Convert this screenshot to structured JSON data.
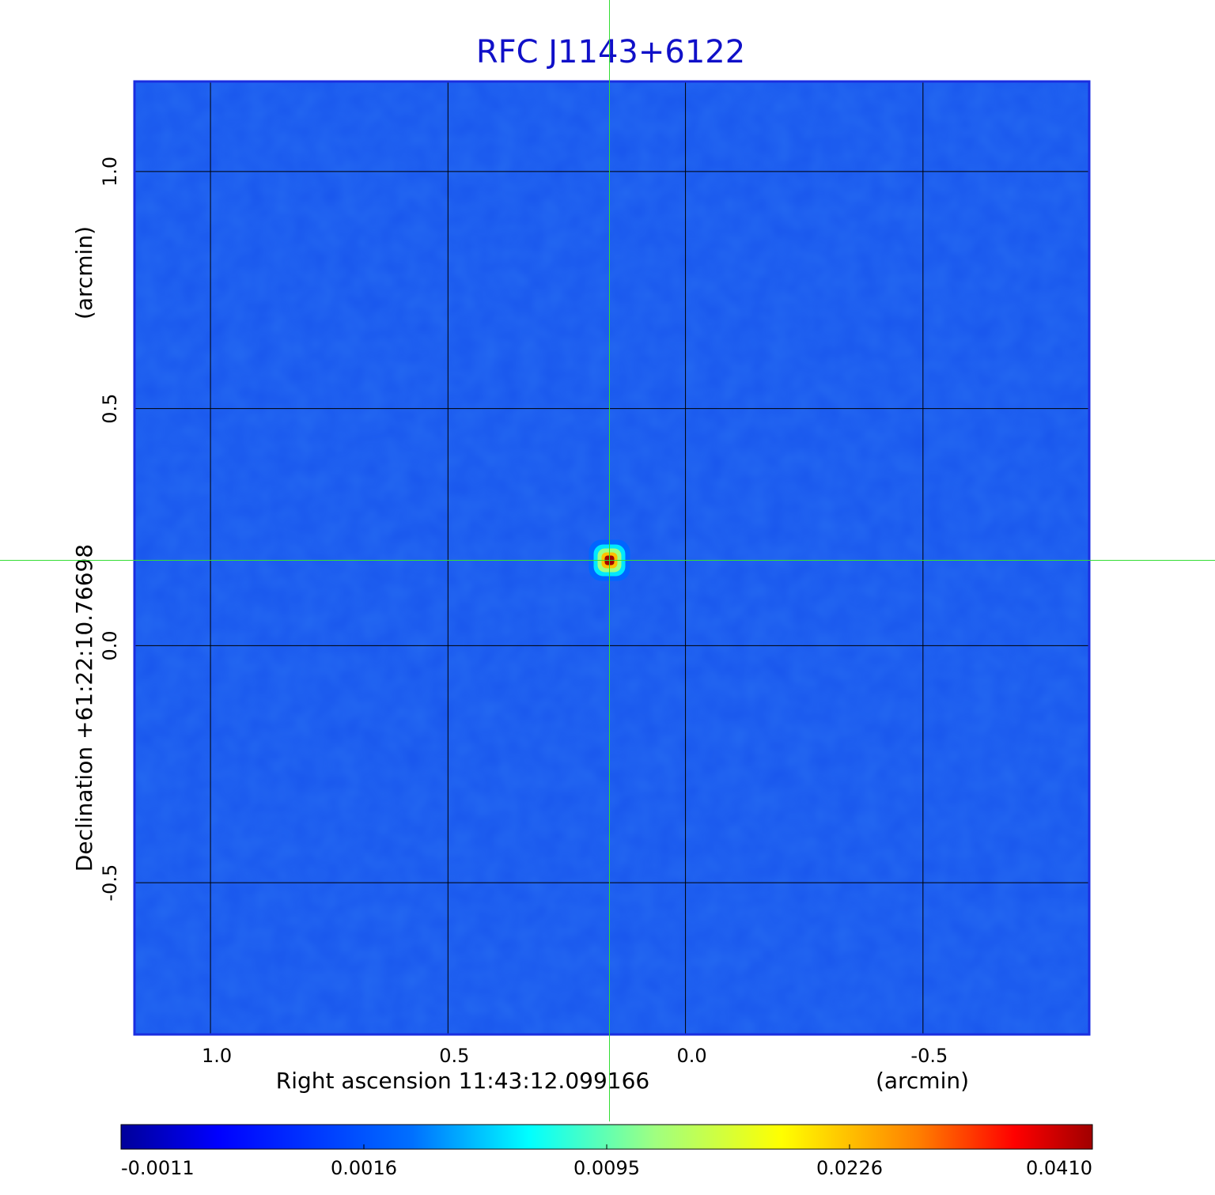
{
  "chart_data": {
    "type": "image",
    "title": "RFC J1143+6122",
    "x_label": "Right ascension  11:43:12.099166",
    "x_unit": "(arcmin)",
    "y_label": "Declination  +61:22:10.76698",
    "y_unit": "(arcmin)",
    "xlim": [
      1.16,
      -0.85
    ],
    "ylim": [
      -0.82,
      1.19
    ],
    "xticks": [
      {
        "value": 1,
        "label": "1.0"
      },
      0.5,
      {
        "value": 0,
        "label": "0.0"
      },
      -0.5
    ],
    "yticks": [
      {
        "value": 1,
        "label": "1.0"
      },
      0.5,
      {
        "value": 0,
        "label": "0.0"
      },
      -0.5
    ],
    "grid": true,
    "crosshair": {
      "x": 0.16,
      "y": 0.18
    },
    "source": {
      "x": 0.16,
      "y": 0.18,
      "peak": 0.041
    },
    "colormap": "jet",
    "clim": [
      -0.0011,
      0.041
    ],
    "colorbar_ticks": [
      -0.0011,
      0.0016,
      0.0095,
      0.0226,
      {
        "value": 0.041,
        "label": "0.0410"
      }
    ]
  }
}
